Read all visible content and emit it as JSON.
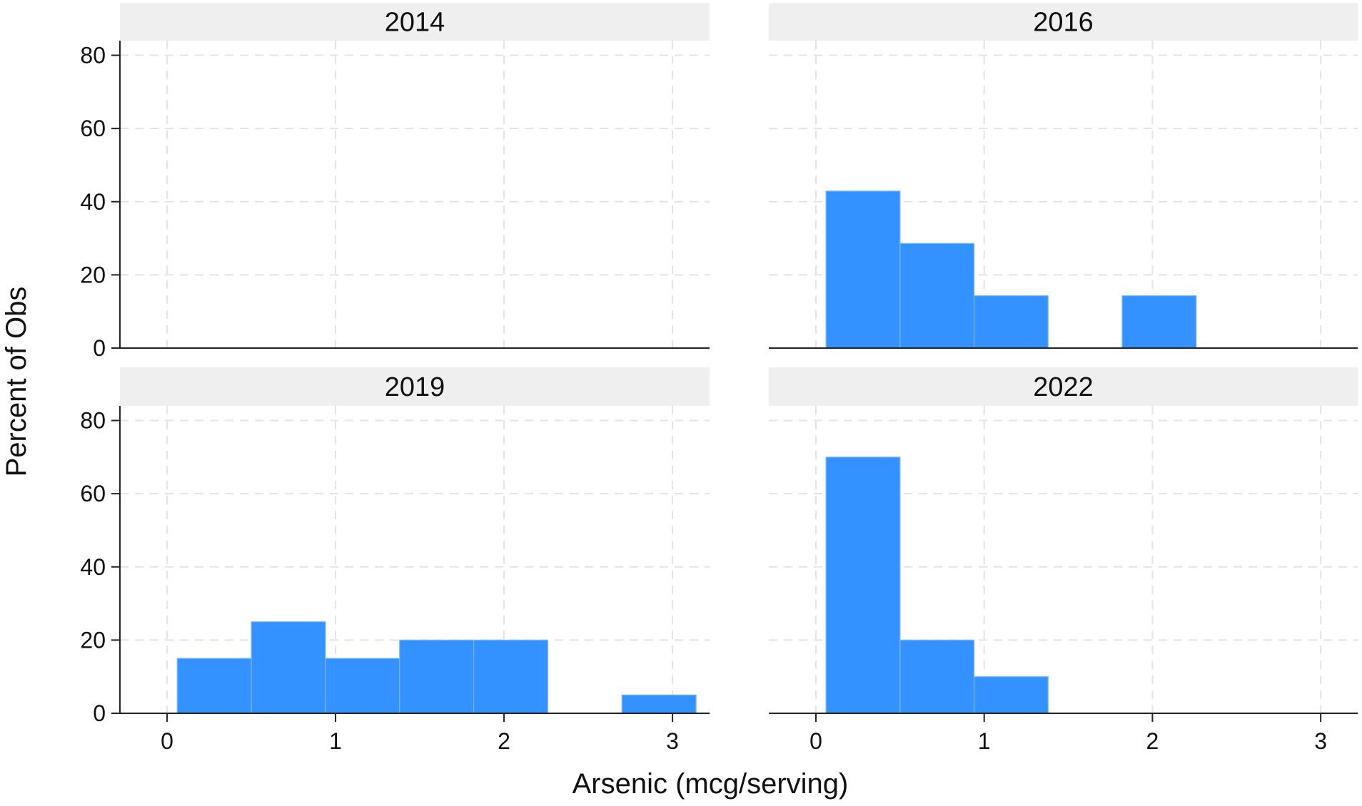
{
  "chart_data": {
    "type": "bar",
    "subtype": "histogram",
    "xlabel": "Arsenic (mcg/serving)",
    "ylabel": "Percent of Obs",
    "xlim": [
      -0.28,
      3.22
    ],
    "ylim": [
      0,
      84
    ],
    "xticks": [
      0,
      1,
      2,
      3
    ],
    "yticks": [
      0,
      20,
      40,
      60,
      80
    ],
    "grid": true,
    "bar_color": "#3392ff",
    "strip_color": "#efefef",
    "panels": [
      {
        "label": "2014",
        "bins": []
      },
      {
        "label": "2016",
        "bins": [
          {
            "x0": 0.06,
            "x1": 0.5,
            "value": 42.9
          },
          {
            "x0": 0.5,
            "x1": 0.94,
            "value": 28.6
          },
          {
            "x0": 0.94,
            "x1": 1.38,
            "value": 14.3
          },
          {
            "x0": 1.82,
            "x1": 2.26,
            "value": 14.3
          }
        ]
      },
      {
        "label": "2019",
        "bins": [
          {
            "x0": 0.06,
            "x1": 0.5,
            "value": 15
          },
          {
            "x0": 0.5,
            "x1": 0.94,
            "value": 25
          },
          {
            "x0": 0.94,
            "x1": 1.38,
            "value": 15
          },
          {
            "x0": 1.38,
            "x1": 1.82,
            "value": 20
          },
          {
            "x0": 1.82,
            "x1": 2.26,
            "value": 20
          },
          {
            "x0": 2.7,
            "x1": 3.14,
            "value": 5
          }
        ]
      },
      {
        "label": "2022",
        "bins": [
          {
            "x0": 0.06,
            "x1": 0.5,
            "value": 70
          },
          {
            "x0": 0.5,
            "x1": 0.94,
            "value": 20
          },
          {
            "x0": 0.94,
            "x1": 1.38,
            "value": 10
          }
        ]
      }
    ]
  }
}
